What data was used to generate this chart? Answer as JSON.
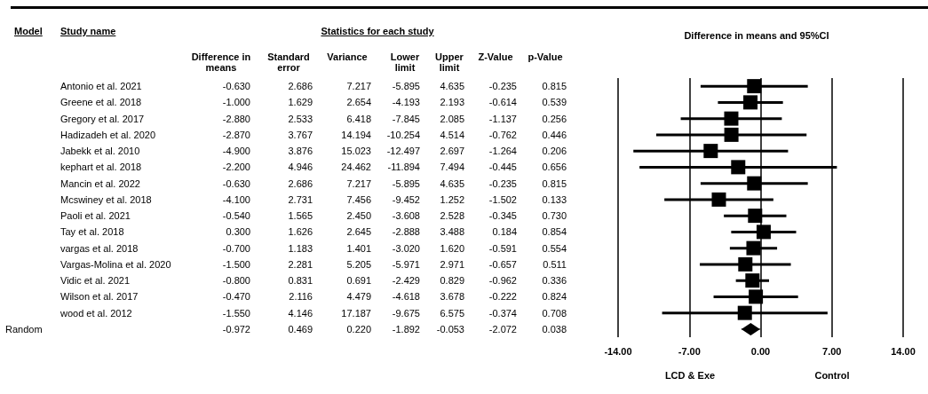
{
  "chart_data": [
    {
      "type": "other",
      "title": "Statistics for each study",
      "annotations": [
        "Model",
        "Study name"
      ],
      "categories": [
        "Difference in means",
        "Standard error",
        "Variance",
        "Lower limit",
        "Upper limit",
        "Z-Value",
        "p-Value"
      ],
      "y_categories": [
        "Antonio et al. 2021",
        "Greene et al. 2018",
        "Gregory et al. 2017",
        "Hadizadeh et al. 2020",
        "Jabekk et al. 2010",
        "kephart et al. 2018",
        "Mancin et al. 2022",
        "Mcswiney et al. 2018",
        "Paoli et al. 2021",
        "Tay et al. 2018",
        "vargas et al. 2018",
        "Vargas-Molina et al. 2020",
        "Vidic et al. 2021",
        "Wilson et al. 2017",
        "wood et al. 2012",
        null
      ],
      "y2_categories": [
        null,
        null,
        null,
        null,
        null,
        null,
        null,
        null,
        null,
        null,
        null,
        null,
        null,
        null,
        null,
        "Random"
      ],
      "cell_labels": [
        [
          "-0.630",
          "2.686",
          "7.217",
          "-5.895",
          "4.635",
          "-0.235",
          "0.815"
        ],
        [
          "-1.000",
          "1.629",
          "2.654",
          "-4.193",
          "2.193",
          "-0.614",
          "0.539"
        ],
        [
          "-2.880",
          "2.533",
          "6.418",
          "-7.845",
          "2.085",
          "-1.137",
          "0.256"
        ],
        [
          "-2.870",
          "3.767",
          "14.194",
          "-10.254",
          "4.514",
          "-0.762",
          "0.446"
        ],
        [
          "-4.900",
          "3.876",
          "15.023",
          "-12.497",
          "2.697",
          "-1.264",
          "0.206"
        ],
        [
          "-2.200",
          "4.946",
          "24.462",
          "-11.894",
          "7.494",
          "-0.445",
          "0.656"
        ],
        [
          "-0.630",
          "2.686",
          "7.217",
          "-5.895",
          "4.635",
          "-0.235",
          "0.815"
        ],
        [
          "-4.100",
          "2.731",
          "7.456",
          "-9.452",
          "1.252",
          "-1.502",
          "0.133"
        ],
        [
          "-0.540",
          "1.565",
          "2.450",
          "-3.608",
          "2.528",
          "-0.345",
          "0.730"
        ],
        [
          "0.300",
          "1.626",
          "2.645",
          "-2.888",
          "3.488",
          "0.184",
          "0.854"
        ],
        [
          "-0.700",
          "1.183",
          "1.401",
          "-3.020",
          "1.620",
          "-0.591",
          "0.554"
        ],
        [
          "-1.500",
          "2.281",
          "5.205",
          "-5.971",
          "2.971",
          "-0.657",
          "0.511"
        ],
        [
          "-0.800",
          "0.831",
          "0.691",
          "-2.429",
          "0.829",
          "-0.962",
          "0.336"
        ],
        [
          "-0.470",
          "2.116",
          "4.479",
          "-4.618",
          "3.678",
          "-0.222",
          "0.824"
        ],
        [
          "-1.550",
          "4.146",
          "17.187",
          "-9.675",
          "6.575",
          "-0.374",
          "0.708"
        ],
        [
          "-0.972",
          "0.469",
          "0.220",
          "-1.892",
          "-0.053",
          "-2.072",
          "0.038"
        ]
      ]
    },
    {
      "type": "scatter",
      "orientation": "horizontal",
      "title": "Difference in means and 95%CI",
      "annotations": [
        "LCD & Exe",
        "Control"
      ],
      "categories": [
        null,
        null,
        null,
        null,
        null,
        null,
        null,
        null,
        null,
        null,
        null,
        null,
        null,
        null,
        null,
        null
      ],
      "series": [
        {
          "marker": "square",
          "color": "#000000",
          "values": [
            -0.63,
            -1.0,
            -2.88,
            -2.87,
            -4.9,
            -2.2,
            -0.63,
            -4.1,
            -0.54,
            0.3,
            -0.7,
            -1.5,
            -0.8,
            -0.47,
            -1.55,
            null
          ],
          "errors": [
            [
              -5.895,
              4.635
            ],
            [
              -4.193,
              2.193
            ],
            [
              -7.845,
              2.085
            ],
            [
              -10.254,
              4.514
            ],
            [
              -12.497,
              2.697
            ],
            [
              -11.894,
              7.494
            ],
            [
              -5.895,
              4.635
            ],
            [
              -9.452,
              1.252
            ],
            [
              -3.608,
              2.528
            ],
            [
              -2.888,
              3.488
            ],
            [
              -3.02,
              1.62
            ],
            [
              -5.971,
              2.971
            ],
            [
              -2.429,
              0.829
            ],
            [
              -4.618,
              3.678
            ],
            [
              -9.675,
              6.575
            ],
            null
          ]
        },
        {
          "marker": "diamond",
          "color": "#000000",
          "values": [
            null,
            null,
            null,
            null,
            null,
            null,
            null,
            null,
            null,
            null,
            null,
            null,
            null,
            null,
            null,
            -0.972
          ],
          "errors": [
            null,
            null,
            null,
            null,
            null,
            null,
            null,
            null,
            null,
            null,
            null,
            null,
            null,
            null,
            null,
            [
              -1.892,
              -0.053
            ]
          ]
        }
      ],
      "xlim": [
        -14,
        14
      ],
      "xticks": [
        {
          "value": -14,
          "label": "-14.00"
        },
        {
          "value": -7,
          "label": "-7.00"
        },
        {
          "value": 0,
          "label": "0.00"
        },
        {
          "value": 7,
          "label": "7.00"
        },
        {
          "value": 14,
          "label": "14.00"
        }
      ],
      "grid": "x",
      "tick_labels": "x"
    }
  ]
}
